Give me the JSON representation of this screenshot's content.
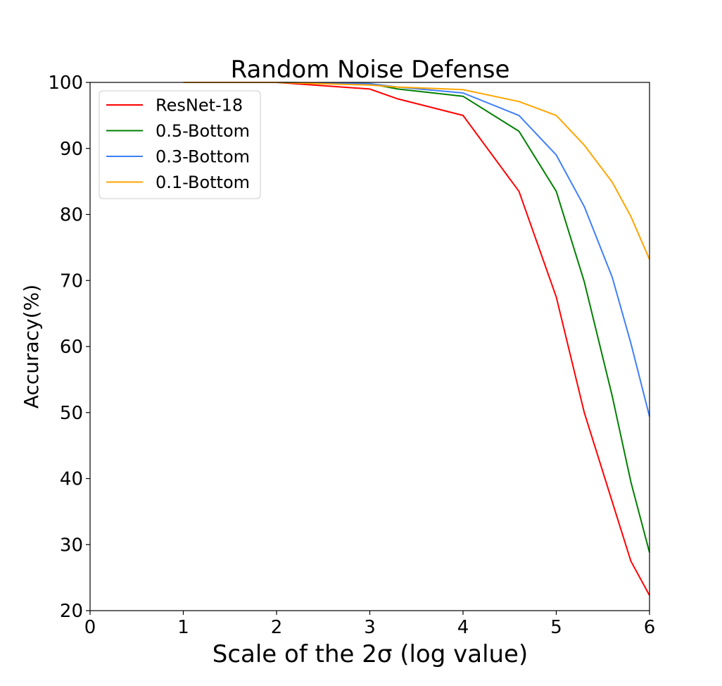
{
  "chart_data": {
    "type": "line",
    "title": "Random Noise Defense",
    "xlabel": "Scale of the 2σ (log value)",
    "ylabel": "Accuracy(%)",
    "xlim": [
      0,
      6
    ],
    "ylim": [
      20,
      100
    ],
    "xticks": [
      "0",
      "1",
      "2",
      "3",
      "4",
      "5",
      "6"
    ],
    "yticks": [
      "20",
      "30",
      "40",
      "50",
      "60",
      "70",
      "80",
      "90",
      "100"
    ],
    "grid": false,
    "legend_position": "top-left",
    "series": [
      {
        "name": "ResNet-18",
        "color": "#ff0000",
        "x": [
          1,
          2,
          3,
          3.3,
          4,
          4.6,
          5,
          5.3,
          5.6,
          5.8,
          6
        ],
        "y": [
          100,
          100,
          99,
          97.5,
          95,
          83.5,
          67.5,
          50,
          36.5,
          27.5,
          22.3
        ]
      },
      {
        "name": "0.5-Bottom",
        "color": "#008000",
        "x": [
          1,
          2,
          3,
          3.3,
          4,
          4.6,
          5,
          5.3,
          5.6,
          5.8,
          6
        ],
        "y": [
          100,
          100,
          99.8,
          99,
          97.9,
          92.6,
          83.5,
          69.8,
          52.5,
          39.5,
          28.8
        ]
      },
      {
        "name": "0.3-Bottom",
        "color": "#3f7ff7",
        "x": [
          1,
          2,
          3,
          3.3,
          4,
          4.6,
          5,
          5.3,
          5.6,
          5.8,
          6
        ],
        "y": [
          100,
          100,
          99.8,
          99.3,
          98.4,
          95,
          89,
          81.2,
          70.5,
          60.5,
          49.4
        ]
      },
      {
        "name": "0.1-Bottom",
        "color": "#ffa500",
        "x": [
          1,
          2,
          3,
          3.3,
          4,
          4.6,
          5,
          5.3,
          5.6,
          5.8,
          6
        ],
        "y": [
          100,
          100,
          99.6,
          99.3,
          98.9,
          97.1,
          95,
          90.5,
          84.9,
          79.7,
          73.2
        ]
      }
    ]
  }
}
